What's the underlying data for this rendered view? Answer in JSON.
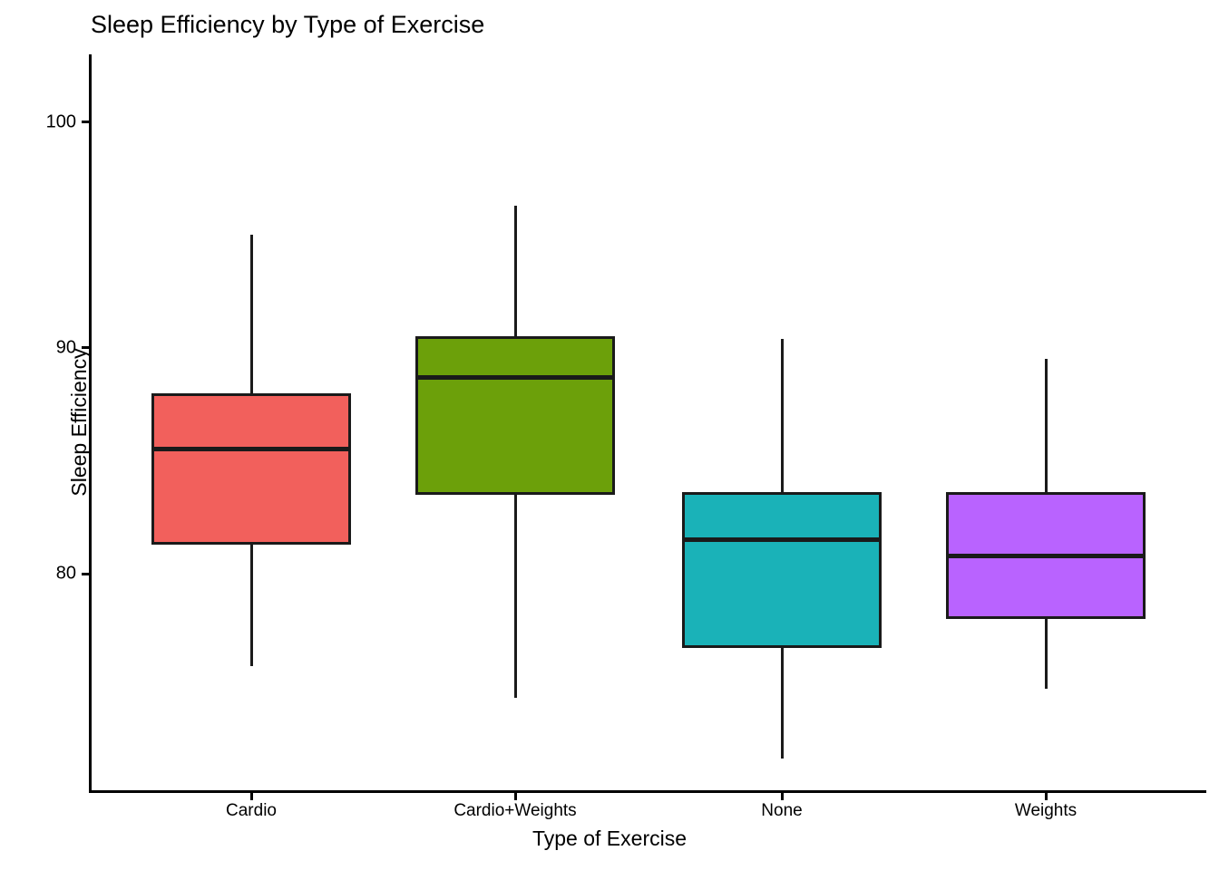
{
  "chart": {
    "title": "Sleep Efficiency by Type of Exercise",
    "xlabel": "Type of Exercise",
    "ylabel": "Sleep Efficiency"
  },
  "chart_data": {
    "type": "boxplot",
    "title": "Sleep Efficiency by Type of Exercise",
    "xlabel": "Type of Exercise",
    "ylabel": "Sleep Efficiency",
    "categories": [
      "Cardio",
      "Cardio+Weights",
      "None",
      "Weights"
    ],
    "y_ticks": [
      80,
      90,
      100
    ],
    "ylim": [
      70.4,
      103.0
    ],
    "grid": false,
    "legend": "none",
    "axis_color": "#000000",
    "box_line_color": "#1a1a1a",
    "series": [
      {
        "category": "Cardio",
        "whisker_low": 75.9,
        "q1": 81.3,
        "median": 85.5,
        "q3": 88.0,
        "whisker_high": 95.0,
        "fill": "#F2605C"
      },
      {
        "category": "Cardio+Weights",
        "whisker_low": 74.5,
        "q1": 83.5,
        "median": 88.7,
        "q3": 90.5,
        "whisker_high": 96.3,
        "fill": "#6CA00A"
      },
      {
        "category": "None",
        "whisker_low": 71.8,
        "q1": 76.7,
        "median": 81.5,
        "q3": 83.6,
        "whisker_high": 90.4,
        "fill": "#1AB2B8"
      },
      {
        "category": "Weights",
        "whisker_low": 74.9,
        "q1": 78.0,
        "median": 80.8,
        "q3": 83.6,
        "whisker_high": 89.5,
        "fill": "#B963FF"
      }
    ],
    "outliers": []
  }
}
